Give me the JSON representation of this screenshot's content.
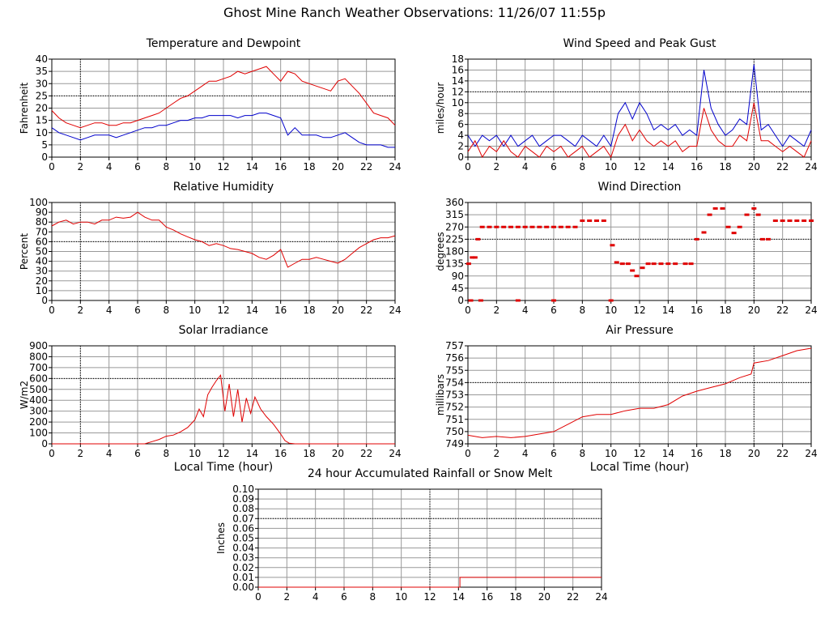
{
  "page": {
    "title": "Ghost Mine Ranch Weather Observations: 11/26/07 11:55p"
  },
  "colors": {
    "red": "#e00000",
    "blue": "#0000cc",
    "grid": "#999999",
    "highlight": "#000000"
  },
  "chart_data": [
    {
      "id": "temp",
      "type": "line",
      "title": "Temperature and Dewpoint",
      "xlabel": "",
      "ylabel": "Fahrenheit",
      "xlim": [
        0,
        24
      ],
      "ylim": [
        0,
        40
      ],
      "xticks": [
        0,
        2,
        4,
        6,
        8,
        10,
        12,
        14,
        16,
        18,
        20,
        22,
        24
      ],
      "yticks": [
        0,
        5,
        10,
        15,
        20,
        25,
        30,
        35,
        40
      ],
      "ytick_labels": [
        "0",
        "5",
        "10",
        "15",
        "20",
        "25",
        "30",
        "35",
        "40"
      ],
      "series": [
        {
          "color": "#e00000",
          "x": [
            0,
            0.5,
            1,
            1.5,
            2,
            2.5,
            3,
            3.5,
            4,
            4.5,
            5,
            5.5,
            6,
            6.5,
            7,
            7.5,
            8,
            8.5,
            9,
            9.5,
            10,
            10.5,
            11,
            11.5,
            12,
            12.5,
            13,
            13.5,
            14,
            14.5,
            15,
            15.5,
            16,
            16.5,
            17,
            17.5,
            18,
            18.5,
            19,
            19.5,
            20,
            20.5,
            21,
            21.5,
            22,
            22.5,
            23,
            23.5,
            24
          ],
          "values": [
            19,
            16,
            14,
            13,
            12,
            13,
            14,
            14,
            13,
            13,
            14,
            14,
            15,
            16,
            17,
            18,
            20,
            22,
            24,
            25,
            27,
            29,
            31,
            31,
            32,
            33,
            35,
            34,
            35,
            36,
            37,
            34,
            31,
            35,
            34,
            31,
            30,
            29,
            28,
            27,
            31,
            32,
            29,
            26,
            22,
            18,
            17,
            16,
            13
          ]
        },
        {
          "color": "#0000cc",
          "x": [
            0,
            0.5,
            1,
            1.5,
            2,
            2.5,
            3,
            3.5,
            4,
            4.5,
            5,
            5.5,
            6,
            6.5,
            7,
            7.5,
            8,
            8.5,
            9,
            9.5,
            10,
            10.5,
            11,
            11.5,
            12,
            12.5,
            13,
            13.5,
            14,
            14.5,
            15,
            15.5,
            16,
            16.5,
            17,
            17.5,
            18,
            18.5,
            19,
            19.5,
            20,
            20.5,
            21,
            21.5,
            22,
            22.5,
            23,
            23.5,
            24
          ],
          "values": [
            12,
            10,
            9,
            8,
            7,
            8,
            9,
            9,
            9,
            8,
            9,
            10,
            11,
            12,
            12,
            13,
            13,
            14,
            15,
            15,
            16,
            16,
            17,
            17,
            17,
            17,
            16,
            17,
            17,
            18,
            18,
            17,
            16,
            9,
            12,
            9,
            9,
            9,
            8,
            8,
            9,
            10,
            8,
            6,
            5,
            5,
            5,
            4,
            4
          ]
        }
      ]
    },
    {
      "id": "wind",
      "type": "line",
      "title": "Wind Speed and Peak Gust",
      "xlabel": "",
      "ylabel": "miles/hour",
      "xlim": [
        0,
        24
      ],
      "ylim": [
        0,
        18
      ],
      "xticks": [
        0,
        2,
        4,
        6,
        8,
        10,
        12,
        14,
        16,
        18,
        20,
        22,
        24
      ],
      "yticks": [
        0,
        2,
        4,
        6,
        8,
        10,
        12,
        14,
        16,
        18
      ],
      "ytick_labels": [
        "0",
        "2",
        "4",
        "6",
        "8",
        "10",
        "12",
        "14",
        "16",
        "18"
      ],
      "series": [
        {
          "color": "#0000cc",
          "x": [
            0,
            0.5,
            1,
            1.5,
            2,
            2.5,
            3,
            3.5,
            4,
            4.5,
            5,
            5.5,
            6,
            6.5,
            7,
            7.5,
            8,
            8.5,
            9,
            9.5,
            10,
            10.5,
            11,
            11.5,
            12,
            12.5,
            13,
            13.5,
            14,
            14.5,
            15,
            15.5,
            16,
            16.5,
            17,
            17.5,
            18,
            18.5,
            19,
            19.5,
            20,
            20.5,
            21,
            21.5,
            22,
            22.5,
            23,
            23.5,
            24
          ],
          "values": [
            4,
            2,
            4,
            3,
            4,
            2,
            4,
            2,
            3,
            4,
            2,
            3,
            4,
            4,
            3,
            2,
            4,
            3,
            2,
            4,
            2,
            8,
            10,
            7,
            10,
            8,
            5,
            6,
            5,
            6,
            4,
            5,
            4,
            16,
            9,
            6,
            4,
            5,
            7,
            6,
            17,
            5,
            6,
            4,
            2,
            4,
            3,
            2,
            5
          ]
        },
        {
          "color": "#e00000",
          "x": [
            0,
            0.5,
            1,
            1.5,
            2,
            2.5,
            3,
            3.5,
            4,
            4.5,
            5,
            5.5,
            6,
            6.5,
            7,
            7.5,
            8,
            8.5,
            9,
            9.5,
            10,
            10.5,
            11,
            11.5,
            12,
            12.5,
            13,
            13.5,
            14,
            14.5,
            15,
            15.5,
            16,
            16.5,
            17,
            17.5,
            18,
            18.5,
            19,
            19.5,
            20,
            20.5,
            21,
            21.5,
            22,
            22.5,
            23,
            23.5,
            24
          ],
          "values": [
            1,
            3,
            0,
            2,
            1,
            3,
            1,
            0,
            2,
            1,
            0,
            2,
            1,
            2,
            0,
            1,
            2,
            0,
            1,
            2,
            0,
            4,
            6,
            3,
            5,
            3,
            2,
            3,
            2,
            3,
            1,
            2,
            2,
            9,
            5,
            3,
            2,
            2,
            4,
            3,
            10,
            3,
            3,
            2,
            1,
            2,
            1,
            0,
            3
          ]
        }
      ]
    },
    {
      "id": "rh",
      "type": "line",
      "title": "Relative Humidity",
      "xlabel": "",
      "ylabel": "Percent",
      "xlim": [
        0,
        24
      ],
      "ylim": [
        0,
        100
      ],
      "xticks": [
        0,
        2,
        4,
        6,
        8,
        10,
        12,
        14,
        16,
        18,
        20,
        22,
        24
      ],
      "yticks": [
        0,
        10,
        20,
        30,
        40,
        50,
        60,
        70,
        80,
        90,
        100
      ],
      "ytick_labels": [
        "0",
        "10",
        "20",
        "30",
        "40",
        "50",
        "60",
        "70",
        "80",
        "90",
        "100"
      ],
      "series": [
        {
          "color": "#e00000",
          "x": [
            0,
            0.5,
            1,
            1.5,
            2,
            2.5,
            3,
            3.5,
            4,
            4.5,
            5,
            5.5,
            6,
            6.5,
            7,
            7.5,
            8,
            8.5,
            9,
            9.5,
            10,
            10.5,
            11,
            11.5,
            12,
            12.5,
            13,
            13.5,
            14,
            14.5,
            15,
            15.5,
            16,
            16.5,
            17,
            17.5,
            18,
            18.5,
            19,
            19.5,
            20,
            20.5,
            21,
            21.5,
            22,
            22.5,
            23,
            23.5,
            24
          ],
          "values": [
            76,
            80,
            82,
            78,
            80,
            80,
            78,
            82,
            82,
            85,
            84,
            85,
            90,
            85,
            82,
            82,
            75,
            72,
            68,
            65,
            62,
            60,
            56,
            58,
            56,
            53,
            52,
            50,
            48,
            44,
            42,
            46,
            52,
            34,
            38,
            42,
            42,
            44,
            42,
            40,
            38,
            42,
            48,
            54,
            58,
            62,
            64,
            64,
            66
          ]
        }
      ]
    },
    {
      "id": "wdir",
      "type": "scatter",
      "title": "Wind Direction",
      "xlabel": "",
      "ylabel": "degrees",
      "xlim": [
        0,
        24
      ],
      "ylim": [
        0,
        360
      ],
      "xticks": [
        0,
        2,
        4,
        6,
        8,
        10,
        12,
        14,
        16,
        18,
        20,
        22,
        24
      ],
      "yticks": [
        0,
        45,
        90,
        135,
        180,
        225,
        270,
        315,
        360
      ],
      "ytick_labels": [
        "0",
        "45",
        "90",
        "135",
        "180",
        "225",
        "270",
        "315",
        "360"
      ],
      "series": [
        {
          "color": "#e00000",
          "x": [
            0.05,
            0.3,
            0.5,
            0.7,
            1.0,
            1.5,
            2.0,
            2.5,
            3.0,
            3.5,
            4.0,
            4.5,
            5.0,
            5.5,
            6.0,
            6.5,
            7.0,
            7.5,
            8.0,
            8.5,
            9.0,
            9.5,
            10.1,
            10.4,
            10.8,
            11.2,
            11.5,
            11.8,
            12.2,
            12.6,
            13.0,
            13.5,
            14.0,
            14.5,
            15.2,
            15.6,
            16.0,
            16.5,
            16.9,
            17.3,
            17.8,
            18.2,
            18.6,
            19.0,
            19.5,
            20.0,
            20.3,
            20.6,
            21.0,
            21.5,
            22.0,
            22.5,
            23.0,
            23.5,
            24.0,
            0.2,
            0.9,
            3.5,
            6.0,
            10.0
          ],
          "values": [
            135,
            158,
            158,
            225,
            270,
            270,
            270,
            270,
            270,
            270,
            270,
            270,
            270,
            270,
            270,
            270,
            270,
            270,
            293,
            293,
            293,
            293,
            203,
            140,
            135,
            135,
            110,
            90,
            120,
            135,
            135,
            135,
            135,
            135,
            135,
            135,
            225,
            250,
            315,
            338,
            338,
            270,
            248,
            270,
            315,
            338,
            315,
            225,
            225,
            293,
            293,
            293,
            293,
            293,
            293,
            0,
            0,
            0,
            0,
            0
          ]
        }
      ]
    },
    {
      "id": "solar",
      "type": "line",
      "title": "Solar Irradiance",
      "xlabel": "Local Time (hour)",
      "ylabel": "W/m2",
      "xlim": [
        0,
        24
      ],
      "ylim": [
        0,
        900
      ],
      "xticks": [
        0,
        2,
        4,
        6,
        8,
        10,
        12,
        14,
        16,
        18,
        20,
        22,
        24
      ],
      "yticks": [
        0,
        100,
        200,
        300,
        400,
        500,
        600,
        700,
        800,
        900
      ],
      "ytick_labels": [
        "0",
        "100",
        "200",
        "300",
        "400",
        "500",
        "600",
        "700",
        "800",
        "900"
      ],
      "series": [
        {
          "color": "#e00000",
          "x": [
            0,
            6.5,
            7,
            7.5,
            8,
            8.5,
            9,
            9.5,
            10,
            10.3,
            10.6,
            10.9,
            11.2,
            11.5,
            11.8,
            12.1,
            12.4,
            12.7,
            13.0,
            13.3,
            13.6,
            13.9,
            14.2,
            14.6,
            15.0,
            15.5,
            16.0,
            16.3,
            16.6,
            17.0,
            24
          ],
          "values": [
            0,
            0,
            20,
            40,
            70,
            80,
            110,
            150,
            220,
            320,
            250,
            450,
            520,
            580,
            630,
            300,
            550,
            250,
            500,
            200,
            420,
            280,
            430,
            320,
            250,
            180,
            90,
            30,
            5,
            0,
            0
          ]
        }
      ]
    },
    {
      "id": "pressure",
      "type": "line",
      "title": "Air Pressure",
      "xlabel": "Local Time (hour)",
      "ylabel": "millibars",
      "xlim": [
        0,
        24
      ],
      "ylim": [
        749,
        757
      ],
      "xticks": [
        0,
        2,
        4,
        6,
        8,
        10,
        12,
        14,
        16,
        18,
        20,
        22,
        24
      ],
      "yticks": [
        749,
        750,
        751,
        752,
        753,
        754,
        755,
        756,
        757
      ],
      "ytick_labels": [
        "749",
        "750",
        "751",
        "752",
        "753",
        "754",
        "755",
        "756",
        "757"
      ],
      "series": [
        {
          "color": "#e00000",
          "x": [
            0,
            1,
            2,
            3,
            4,
            5,
            6,
            7,
            8,
            9,
            10,
            11,
            12,
            13,
            14,
            15,
            16,
            17,
            18,
            19,
            19.8,
            20,
            21,
            22,
            23,
            24
          ],
          "values": [
            749.7,
            749.5,
            749.6,
            749.5,
            749.6,
            749.8,
            750.0,
            750.6,
            751.2,
            751.4,
            751.4,
            751.7,
            751.9,
            751.9,
            752.2,
            752.9,
            753.3,
            753.6,
            753.9,
            754.4,
            754.7,
            755.6,
            755.8,
            756.2,
            756.6,
            756.8
          ]
        }
      ]
    },
    {
      "id": "rain",
      "type": "line",
      "title": "24 hour Accumulated Rainfall or Snow Melt",
      "xlabel": "",
      "ylabel": "Inches",
      "xlim": [
        0,
        24
      ],
      "ylim": [
        0,
        0.1
      ],
      "xticks": [
        0,
        2,
        4,
        6,
        8,
        10,
        12,
        14,
        16,
        18,
        20,
        22,
        24
      ],
      "yticks": [
        0,
        0.01,
        0.02,
        0.03,
        0.04,
        0.05,
        0.06,
        0.07,
        0.08,
        0.09,
        0.1
      ],
      "ytick_labels": [
        "0.00",
        "0.01",
        "0.02",
        "0.03",
        "0.04",
        "0.05",
        "0.06",
        "0.07",
        "0.08",
        "0.09",
        "0.10"
      ],
      "series": [
        {
          "color": "#e00000",
          "x": [
            0,
            14.1,
            14.1,
            24
          ],
          "values": [
            0,
            0,
            0.01,
            0.01
          ]
        }
      ]
    }
  ]
}
